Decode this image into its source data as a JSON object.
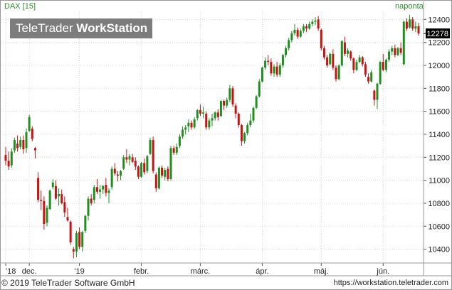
{
  "header": {
    "instrument": "DAX [15]",
    "interval": "naponta",
    "logo_regular": "TeleTrader",
    "logo_bold": "WorkStation"
  },
  "footer": {
    "copyright": "© 2019 TeleTrader Software GmbH",
    "url": "https://workstation.teletrader.com"
  },
  "price_label": "12278",
  "colors": {
    "up": "#1f8f1f",
    "down": "#c41414",
    "grid": "#d8d8d8",
    "frame": "#999999",
    "text_green": "#2e8b2e",
    "label_bg": "#000000"
  },
  "chart_data": {
    "type": "candlestick",
    "title": "DAX [15]",
    "interval": "naponta",
    "ylim": [
      10280,
      12470
    ],
    "y_ticks": [
      10400,
      10600,
      10800,
      11000,
      11200,
      11400,
      11600,
      11800,
      12000,
      12200,
      12400
    ],
    "x_tick_labels": [
      {
        "label": "'18",
        "bar": 0
      },
      {
        "label": "dec.",
        "bar": 8
      },
      {
        "label": "'19",
        "bar": 25
      },
      {
        "label": "febr.",
        "bar": 46
      },
      {
        "label": "márc.",
        "bar": 66
      },
      {
        "label": "ápr.",
        "bar": 87
      },
      {
        "label": "máj.",
        "bar": 107
      },
      {
        "label": "jún.",
        "bar": 128
      }
    ],
    "last_value": 12278,
    "candles": [
      [
        11220,
        11290,
        11130,
        11170
      ],
      [
        11170,
        11250,
        11090,
        11120
      ],
      [
        11130,
        11280,
        11110,
        11250
      ],
      [
        11260,
        11370,
        11240,
        11350
      ],
      [
        11320,
        11390,
        11250,
        11280
      ],
      [
        11290,
        11380,
        11270,
        11350
      ],
      [
        11350,
        11390,
        11230,
        11270
      ],
      [
        11280,
        11450,
        11240,
        11420
      ],
      [
        11430,
        11570,
        11420,
        11550
      ],
      [
        11450,
        11470,
        11340,
        11360
      ],
      [
        11280,
        11290,
        11190,
        11260
      ],
      [
        11020,
        11070,
        10810,
        10830
      ],
      [
        10830,
        10910,
        10740,
        10820
      ],
      [
        10820,
        10860,
        10570,
        10620
      ],
      [
        10630,
        10780,
        10600,
        10760
      ],
      [
        10750,
        10920,
        10740,
        10910
      ],
      [
        10940,
        11010,
        10920,
        10980
      ],
      [
        10950,
        11000,
        10830,
        10840
      ],
      [
        10860,
        10930,
        10780,
        10880
      ],
      [
        10880,
        10920,
        10790,
        10800
      ],
      [
        10810,
        10860,
        10680,
        10720
      ],
      [
        10680,
        10760,
        10640,
        10650
      ],
      [
        10640,
        10650,
        10440,
        10460
      ],
      [
        10400,
        10420,
        10320,
        10380
      ],
      [
        10380,
        10560,
        10330,
        10540
      ],
      [
        10550,
        10590,
        10400,
        10420
      ],
      [
        10420,
        10560,
        10380,
        10550
      ],
      [
        10560,
        10700,
        10540,
        10690
      ],
      [
        10690,
        10860,
        10650,
        10840
      ],
      [
        10840,
        10880,
        10780,
        10800
      ],
      [
        10830,
        10960,
        10800,
        10940
      ],
      [
        10940,
        11010,
        10880,
        10900
      ],
      [
        10900,
        10960,
        10840,
        10920
      ],
      [
        10920,
        10960,
        10880,
        10950
      ],
      [
        10960,
        11020,
        10860,
        10890
      ],
      [
        10890,
        10930,
        10800,
        10910
      ],
      [
        10940,
        11120,
        10920,
        11100
      ],
      [
        11100,
        11150,
        11040,
        11060
      ],
      [
        11050,
        11080,
        10990,
        11040
      ],
      [
        11040,
        11090,
        11000,
        11080
      ],
      [
        11100,
        11220,
        11090,
        11200
      ],
      [
        11200,
        11270,
        11150,
        11180
      ],
      [
        11180,
        11230,
        11130,
        11210
      ],
      [
        11200,
        11230,
        11150,
        11160
      ],
      [
        11170,
        11200,
        11090,
        11120
      ],
      [
        11120,
        11130,
        11010,
        11030
      ],
      [
        11030,
        11160,
        11020,
        11150
      ],
      [
        11150,
        11190,
        11050,
        11070
      ],
      [
        11080,
        11220,
        11060,
        11210
      ],
      [
        11230,
        11370,
        11220,
        11350
      ],
      [
        11350,
        11380,
        11060,
        11080
      ],
      [
        11050,
        11070,
        10900,
        10930
      ],
      [
        10930,
        11120,
        10920,
        11110
      ],
      [
        11110,
        11130,
        11020,
        11040
      ],
      [
        11030,
        11110,
        11000,
        11090
      ],
      [
        11100,
        11120,
        10990,
        11010
      ],
      [
        11010,
        11300,
        11000,
        11280
      ],
      [
        11280,
        11300,
        11220,
        11240
      ],
      [
        11240,
        11320,
        11220,
        11290
      ],
      [
        11300,
        11400,
        11280,
        11380
      ],
      [
        11380,
        11470,
        11360,
        11440
      ],
      [
        11440,
        11480,
        11400,
        11460
      ],
      [
        11470,
        11530,
        11420,
        11500
      ],
      [
        11500,
        11520,
        11440,
        11460
      ],
      [
        11460,
        11550,
        11450,
        11530
      ],
      [
        11540,
        11620,
        11520,
        11610
      ],
      [
        11610,
        11660,
        11560,
        11580
      ],
      [
        11580,
        11640,
        11540,
        11590
      ],
      [
        11580,
        11600,
        11440,
        11460
      ],
      [
        11460,
        11540,
        11440,
        11520
      ],
      [
        11520,
        11580,
        11470,
        11540
      ],
      [
        11540,
        11600,
        11520,
        11590
      ],
      [
        11590,
        11620,
        11520,
        11550
      ],
      [
        11560,
        11700,
        11550,
        11690
      ],
      [
        11690,
        11700,
        11610,
        11650
      ],
      [
        11650,
        11720,
        11630,
        11700
      ],
      [
        11700,
        11830,
        11680,
        11800
      ],
      [
        11800,
        11820,
        11640,
        11660
      ],
      [
        11650,
        11670,
        11540,
        11580
      ],
      [
        11580,
        11590,
        11460,
        11480
      ],
      [
        11480,
        11490,
        11300,
        11340
      ],
      [
        11340,
        11420,
        11320,
        11410
      ],
      [
        11410,
        11500,
        11390,
        11480
      ],
      [
        11480,
        11580,
        11460,
        11520
      ],
      [
        11520,
        11640,
        11500,
        11630
      ],
      [
        11630,
        11740,
        11620,
        11730
      ],
      [
        11730,
        11880,
        11720,
        11860
      ],
      [
        11860,
        11990,
        11850,
        11980
      ],
      [
        11980,
        12070,
        11960,
        12040
      ],
      [
        12040,
        12090,
        12000,
        12030
      ],
      [
        12030,
        12060,
        11910,
        11930
      ],
      [
        11930,
        12010,
        11900,
        11990
      ],
      [
        11990,
        12030,
        11900,
        11920
      ],
      [
        11920,
        12020,
        11900,
        12000
      ],
      [
        12000,
        12100,
        11980,
        12090
      ],
      [
        12090,
        12170,
        12070,
        12150
      ],
      [
        12150,
        12240,
        12130,
        12220
      ],
      [
        12220,
        12300,
        12200,
        12280
      ],
      [
        12280,
        12360,
        12260,
        12310
      ],
      [
        12310,
        12330,
        12230,
        12250
      ],
      [
        12250,
        12320,
        12240,
        12300
      ],
      [
        12300,
        12360,
        12280,
        12340
      ],
      [
        12340,
        12360,
        12290,
        12320
      ],
      [
        12320,
        12380,
        12310,
        12360
      ],
      [
        12360,
        12400,
        12340,
        12380
      ],
      [
        12380,
        12420,
        12350,
        12390
      ],
      [
        12400,
        12430,
        12300,
        12320
      ],
      [
        12310,
        12320,
        12130,
        12150
      ],
      [
        12150,
        12170,
        12050,
        12070
      ],
      [
        12070,
        12090,
        11980,
        12000
      ],
      [
        12010,
        12110,
        12000,
        12100
      ],
      [
        12100,
        12140,
        11960,
        11980
      ],
      [
        11980,
        12000,
        11860,
        11880
      ],
      [
        11880,
        12010,
        11870,
        12000
      ],
      [
        12000,
        12220,
        11990,
        12210
      ],
      [
        12200,
        12250,
        12080,
        12100
      ],
      [
        12100,
        12150,
        12070,
        12130
      ],
      [
        12120,
        12130,
        12040,
        12060
      ],
      [
        12060,
        12070,
        11930,
        11960
      ],
      [
        11960,
        12050,
        11950,
        12030
      ],
      [
        12030,
        12090,
        12020,
        12070
      ],
      [
        12070,
        12080,
        11990,
        12010
      ],
      [
        12010,
        12030,
        11900,
        11920
      ],
      [
        11900,
        11930,
        11840,
        11860
      ],
      [
        11860,
        11960,
        11850,
        11940
      ],
      [
        11780,
        11790,
        11650,
        11700
      ],
      [
        11700,
        11850,
        11620,
        11840
      ],
      [
        11840,
        12040,
        11830,
        12030
      ],
      [
        12030,
        12100,
        11950,
        11960
      ],
      [
        11960,
        12060,
        11940,
        12050
      ],
      [
        12050,
        12140,
        12030,
        12120
      ],
      [
        12120,
        12170,
        12090,
        12150
      ],
      [
        12150,
        12180,
        12070,
        12090
      ],
      [
        12090,
        12160,
        12080,
        12150
      ],
      [
        12150,
        12200,
        12090,
        12110
      ],
      [
        12010,
        12390,
        12000,
        12380
      ],
      [
        12380,
        12410,
        12300,
        12320
      ],
      [
        12330,
        12440,
        12320,
        12400
      ],
      [
        12400,
        12420,
        12300,
        12320
      ],
      [
        12320,
        12380,
        12290,
        12340
      ],
      [
        12340,
        12370,
        12260,
        12278
      ]
    ]
  }
}
